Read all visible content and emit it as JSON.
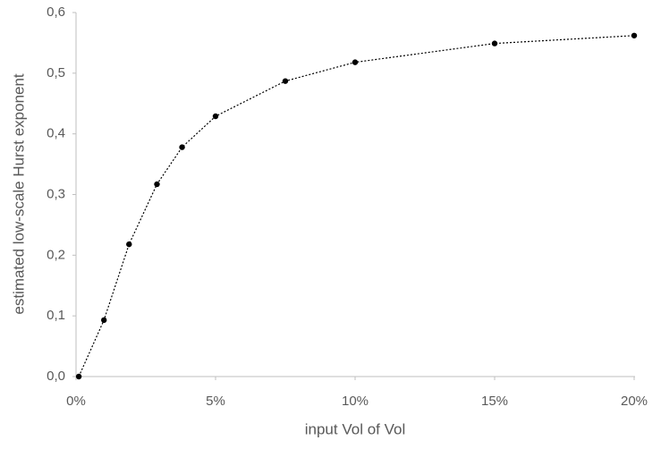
{
  "chart_data": {
    "type": "line",
    "x_label": "input Vol of Vol",
    "y_label": "estimated low-scale Hurst exponent",
    "x": [
      0.1,
      1,
      1.9,
      2.9,
      3.8,
      5,
      7.5,
      10,
      15,
      20
    ],
    "values": [
      0.0,
      0.093,
      0.218,
      0.317,
      0.378,
      0.429,
      0.487,
      0.518,
      0.549,
      0.562
    ],
    "color": "#000000",
    "xlim": [
      0,
      20
    ],
    "xticks": [
      {
        "value": 0,
        "label": "0%"
      },
      {
        "value": 5,
        "label": "5%"
      },
      {
        "value": 10,
        "label": "10%"
      },
      {
        "value": 15,
        "label": "15%"
      },
      {
        "value": 20,
        "label": "20%"
      }
    ],
    "ylim": [
      0,
      0.6
    ],
    "yticks": [
      {
        "value": 0,
        "label": "0,0"
      },
      {
        "value": 0.1,
        "label": "0,1"
      },
      {
        "value": 0.2,
        "label": "0,2"
      },
      {
        "value": 0.3,
        "label": "0,3"
      },
      {
        "value": 0.4,
        "label": "0,4"
      },
      {
        "value": 0.5,
        "label": "0,5"
      },
      {
        "value": 0.6,
        "label": "0,6"
      }
    ],
    "grid": false
  }
}
